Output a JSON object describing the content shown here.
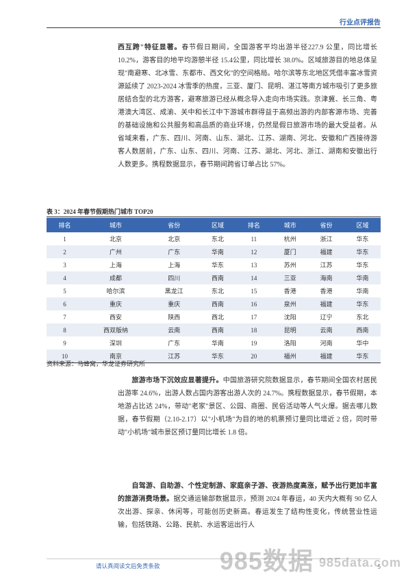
{
  "header": {
    "title": "行业点评报告"
  },
  "paragraph1": {
    "bold": "西互跨\"特征显著。",
    "text": "春节假日期间，全国游客平均出游半径227.9 公里，同比增长 10.2%，游客目的地平均游憩半径 15.4公里，同比增长 38.0%。区域旅游目的地总体呈现\"南避寒、北冰雪、东都市、西文化\"的空间格局。哈尔滨等东北地区凭借丰富冰雪资源延续了 2023-2024 冰雪季的热度，三亚、厦门、昆明、湛江等南方城市吸引了更多旅居结合型的北方游客，避寒旅游已经从概念导入走向市场实践。京津冀、长三角、粤港澳大湾区、成渝、关中和长江中下游城市群得益于高频出游的内部客源市场、完善的基础设施和公共服务和高品质的商业环境，仍然是假日旅游市场的最大受益者。从省域来看，广东、四川、河南、山东、湖北、江苏、湖南、河北、安徽和广西接待游客人数居前，广东、山东、四川、河南、江苏、湖北、河北、浙江、湖南和安徽出行人数更多。携程数据显示，春节期间跨省订单占比 57%。"
  },
  "table": {
    "title": "表 3：2024 年春节假期热门城市 TOP20",
    "headers": [
      "排名",
      "城市",
      "省份",
      "区域",
      "排名",
      "城市",
      "省份",
      "区域"
    ],
    "rows": [
      [
        "1",
        "北京",
        "北京",
        "东北",
        "11",
        "杭州",
        "浙江",
        "华东"
      ],
      [
        "2",
        "广州",
        "广东",
        "华南",
        "12",
        "厦门",
        "福建",
        "华东"
      ],
      [
        "3",
        "上海",
        "上海",
        "华东",
        "13",
        "苏州",
        "江苏",
        "华东"
      ],
      [
        "4",
        "成都",
        "四川",
        "西南",
        "14",
        "三亚",
        "海南",
        "华南"
      ],
      [
        "5",
        "哈尔滨",
        "黑龙江",
        "东北",
        "15",
        "香港",
        "香港",
        "华南"
      ],
      [
        "6",
        "重庆",
        "重庆",
        "西南",
        "16",
        "泉州",
        "福建",
        "华东"
      ],
      [
        "7",
        "西安",
        "陕西",
        "西北",
        "17",
        "沈阳",
        "辽宁",
        "东北"
      ],
      [
        "8",
        "西双版纳",
        "云南",
        "西南",
        "18",
        "昆明",
        "云南",
        "西南"
      ],
      [
        "9",
        "深圳",
        "广东",
        "华南",
        "19",
        "洛阳",
        "河南",
        "华中"
      ],
      [
        "10",
        "南京",
        "江苏",
        "华东",
        "20",
        "福州",
        "福建",
        "华东"
      ]
    ],
    "source": "资料来源：马蜂窝，华龙证券研究所"
  },
  "paragraph2": {
    "bold": "旅游市场下沉效应显著提升。",
    "text": "中国旅游研究院数据显示，春节期间全国农村居民出游率 24.6%，出游人数占国内游客出游人次的 24.7%。携程数据显示，春节假期，本地游占比达 24%，带动\"老家\"景区、公园、商圈、民俗活动等人气火爆。据去哪儿数据，春节假期（2.10-2.17）以\"小机场\"为目的地的机票预订量同比增近 2 倍，同时带动\"小机场\"城市景区预订量同比增长 1.8 倍。"
  },
  "paragraph3": {
    "bold": "自驾游、自助游、个性定制游、家庭亲子游、夜游热度高涨，赋予出行更加丰富的旅游消费场景。",
    "text": "据交通运输部数据显示，预测 2024 年春运，40 天内大概有 90 亿人次出游、探亲、休闲等，可能创历史新高。春运发生了结构性变化，传统营业性运输，包括铁路、公路、民航、水运客运出行人"
  },
  "footer": {
    "text": "请认真阅读文后免责条款",
    "page": "5"
  },
  "watermark": {
    "main": "985数据",
    "sub": "985data.com"
  }
}
